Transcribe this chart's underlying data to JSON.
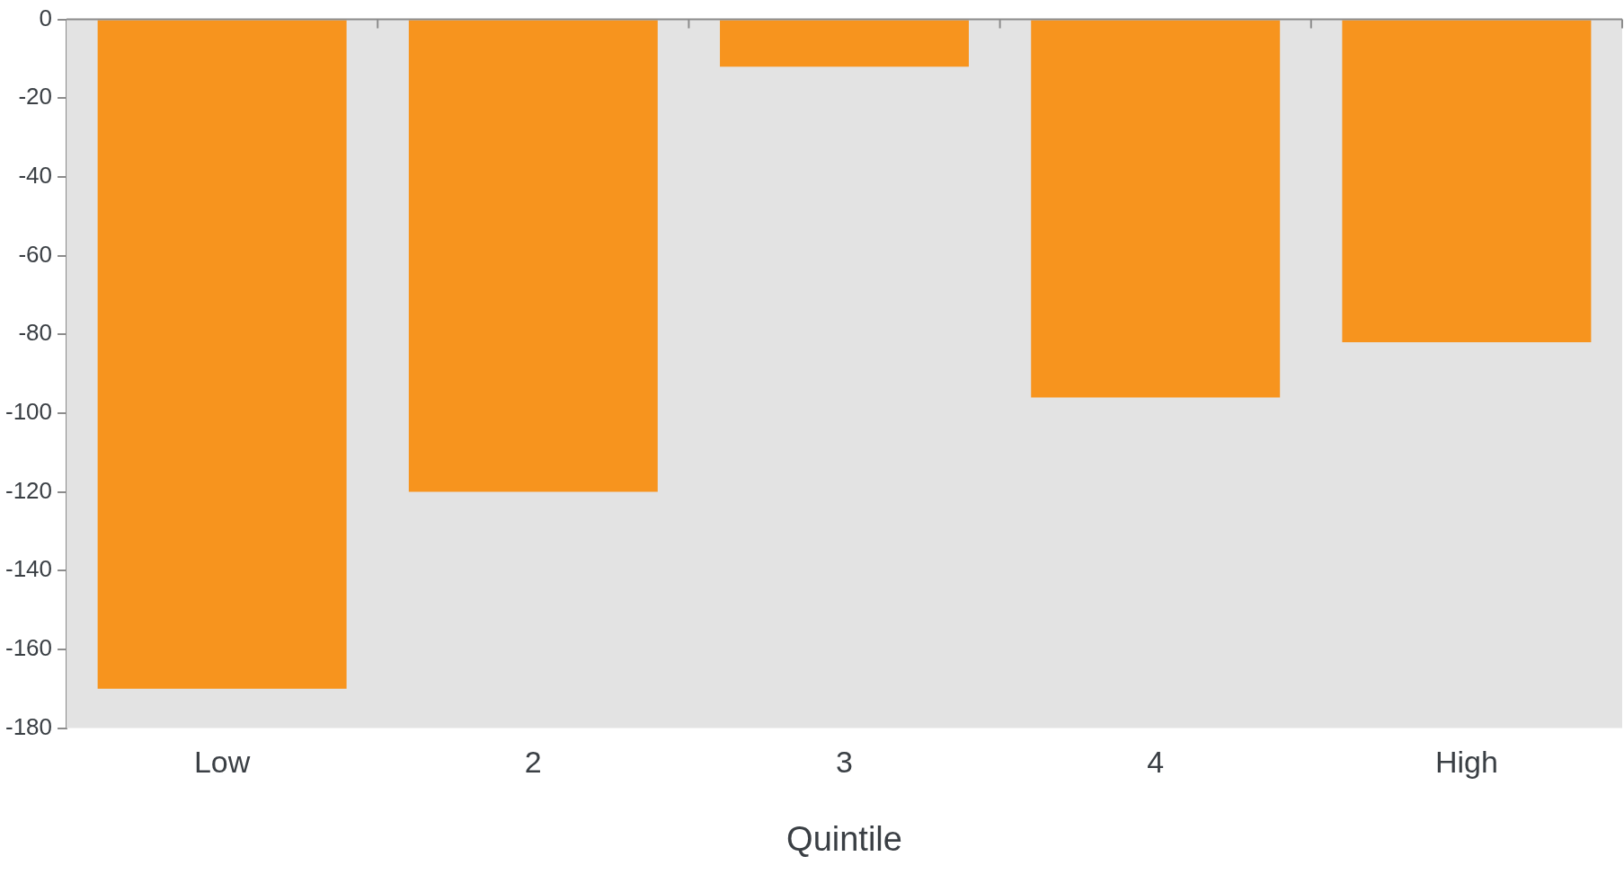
{
  "chart_data": {
    "type": "bar",
    "xlabel": "Quintile",
    "categories": [
      "Low",
      "2",
      "3",
      "4",
      "High"
    ],
    "values": [
      -170,
      -120,
      -12,
      -96,
      -82
    ],
    "color": "#f7941e",
    "ylim": [
      -180,
      0
    ],
    "yticks": [
      -180,
      -160,
      -140,
      -120,
      -100,
      -80,
      -60,
      -40,
      -20,
      0
    ]
  }
}
